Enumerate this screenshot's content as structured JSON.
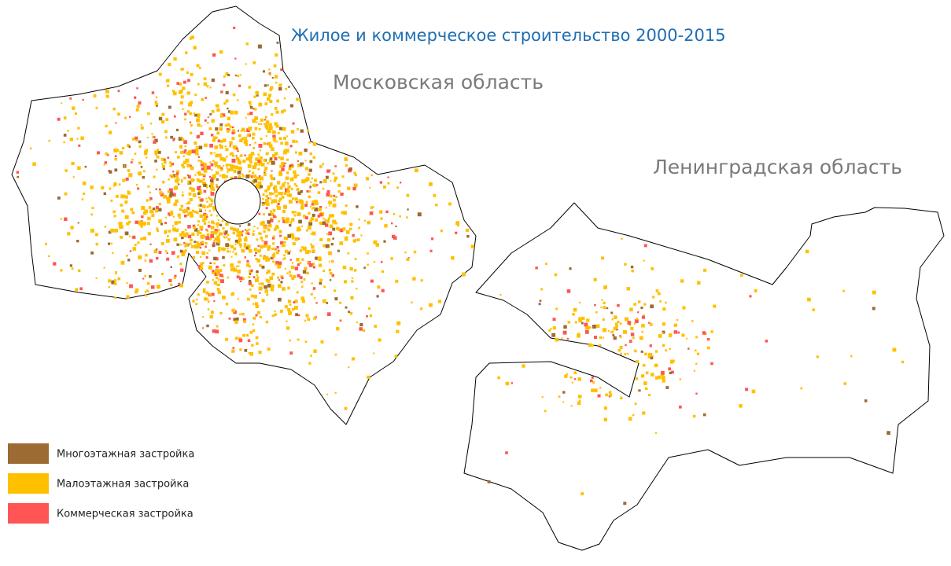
{
  "title": "Жилое и коммерческое строительство 2000-2015",
  "regions": [
    {
      "label": "Московская область"
    },
    {
      "label": "Ленинградская область"
    }
  ],
  "legend": [
    {
      "label": "Многоэтажная застройка",
      "color": "#9c6a33"
    },
    {
      "label": "Малоэтажная застройка",
      "color": "#ffc000"
    },
    {
      "label": "Коммерческая застройка",
      "color": "#ff5555"
    }
  ]
}
